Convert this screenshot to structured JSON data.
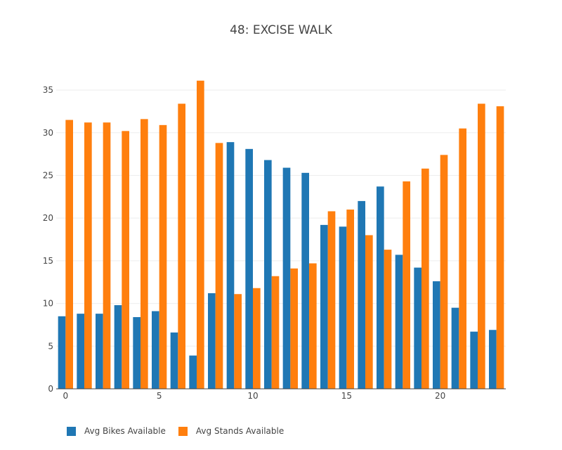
{
  "chart_data": {
    "type": "bar",
    "title": "48: EXCISE WALK",
    "xlabel": "",
    "ylabel": "",
    "x": [
      0,
      1,
      2,
      3,
      4,
      5,
      6,
      7,
      8,
      9,
      10,
      11,
      12,
      13,
      14,
      15,
      16,
      17,
      18,
      19,
      20,
      21,
      22,
      23
    ],
    "xlim": [
      -0.5,
      23.5
    ],
    "ylim": [
      0,
      36.9
    ],
    "x_ticks": [
      0,
      5,
      10,
      15,
      20
    ],
    "y_ticks": [
      0,
      5,
      10,
      15,
      20,
      25,
      30,
      35
    ],
    "grid": true,
    "legend_position": "bottom-left",
    "series": [
      {
        "name": "Avg Bikes Available",
        "color": "#1f77b4",
        "values": [
          8.5,
          8.8,
          8.8,
          9.8,
          8.4,
          9.1,
          6.6,
          3.9,
          11.2,
          28.9,
          28.1,
          26.8,
          25.9,
          25.3,
          19.2,
          19.0,
          22.0,
          23.7,
          15.7,
          14.2,
          12.6,
          9.5,
          6.7,
          6.9
        ]
      },
      {
        "name": "Avg Stands Available",
        "color": "#ff7f0e",
        "values": [
          31.5,
          31.2,
          31.2,
          30.2,
          31.6,
          30.9,
          33.4,
          36.1,
          28.8,
          11.1,
          11.8,
          13.2,
          14.1,
          14.7,
          20.8,
          21.0,
          18.0,
          16.3,
          24.3,
          25.8,
          27.4,
          30.5,
          33.4,
          33.1
        ]
      }
    ]
  }
}
